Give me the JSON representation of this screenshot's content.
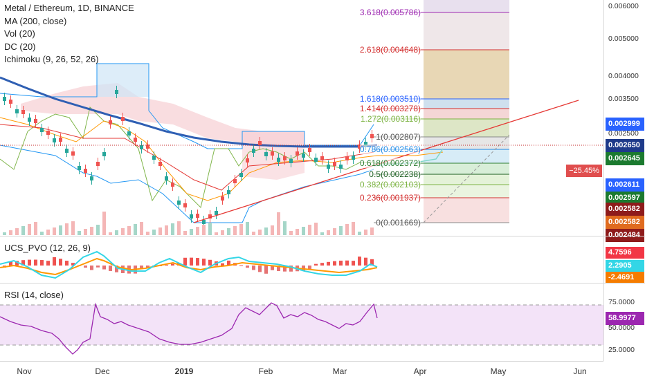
{
  "legend": {
    "title": "Metal / Ethereum, 1D, BINANCE",
    "indicators": [
      "MA (200, close)",
      "Vol (20)",
      "DC (20)",
      "Ichimoku (9, 26, 52, 26)"
    ]
  },
  "pvo_pane": {
    "title": "UCS_PVO (12, 26, 9)"
  },
  "rsi_pane": {
    "title": "RSI (14, close)"
  },
  "price_axis": {
    "ticks": [
      "0.006000",
      "0.005000",
      "0.004000",
      "0.003500",
      "0.002500"
    ],
    "badges": [
      {
        "text": "0.002999",
        "color": "#2962ff"
      },
      {
        "text": "0.002650",
        "color": "#1e3a8a"
      },
      {
        "text": "0.002645",
        "color": "#1b7a2f"
      },
      {
        "text": "0.002611",
        "color": "#2962ff"
      },
      {
        "text": "0.002597",
        "color": "#1b7a2f"
      },
      {
        "text": "0.002582",
        "color": "#8e1b1b"
      },
      {
        "text": "0.002582",
        "color": "#e06b1f"
      },
      {
        "text": "0.002484",
        "color": "#8e1b1b"
      }
    ],
    "percent_label": "−25.45%",
    "percent_price": "0.002645"
  },
  "fib_levels": [
    {
      "label": "3.618(0.005786)",
      "color": "#9c27b0"
    },
    {
      "label": "2.618(0.004648)",
      "color": "#d32f2f"
    },
    {
      "label": "1.618(0.003510)",
      "color": "#2962ff"
    },
    {
      "label": "1.414(0.003278)",
      "color": "#d32f2f"
    },
    {
      "label": "1.272(0.003116)",
      "color": "#7cb342"
    },
    {
      "label": "1(0.002807)",
      "color": "#555555"
    },
    {
      "label": "0.786(0.002563)",
      "color": "#1e88e5"
    },
    {
      "label": "0.618(0.002372)",
      "color": "#2e7d32"
    },
    {
      "label": "0.5(0.002238)",
      "color": "#1b5e20"
    },
    {
      "label": "0.382(0.002103)",
      "color": "#7cb342"
    },
    {
      "label": "0.236(0.001937)",
      "color": "#d32f2f"
    },
    {
      "label": "0(0.001669)",
      "color": "#555555"
    }
  ],
  "pvo_axis": {
    "badges": [
      {
        "text": "4.7596",
        "color": "#f23645"
      },
      {
        "text": "2.2905",
        "color": "#33d6e6"
      },
      {
        "text": "-2.4691",
        "color": "#f57c00"
      }
    ]
  },
  "rsi_axis": {
    "ticks": [
      "75.0000",
      "50.0000",
      "25.0000"
    ],
    "badge": {
      "text": "58.9977",
      "color": "#9c27b0"
    }
  },
  "time_axis": {
    "labels": [
      "Nov",
      "Dec",
      "2019",
      "Feb",
      "Mar",
      "Apr",
      "May",
      "Jun"
    ]
  },
  "colors": {
    "bull": "#26a69a",
    "bear": "#ef5350",
    "ma": "#2f5fb3",
    "rsi": "#9c27b0"
  }
}
